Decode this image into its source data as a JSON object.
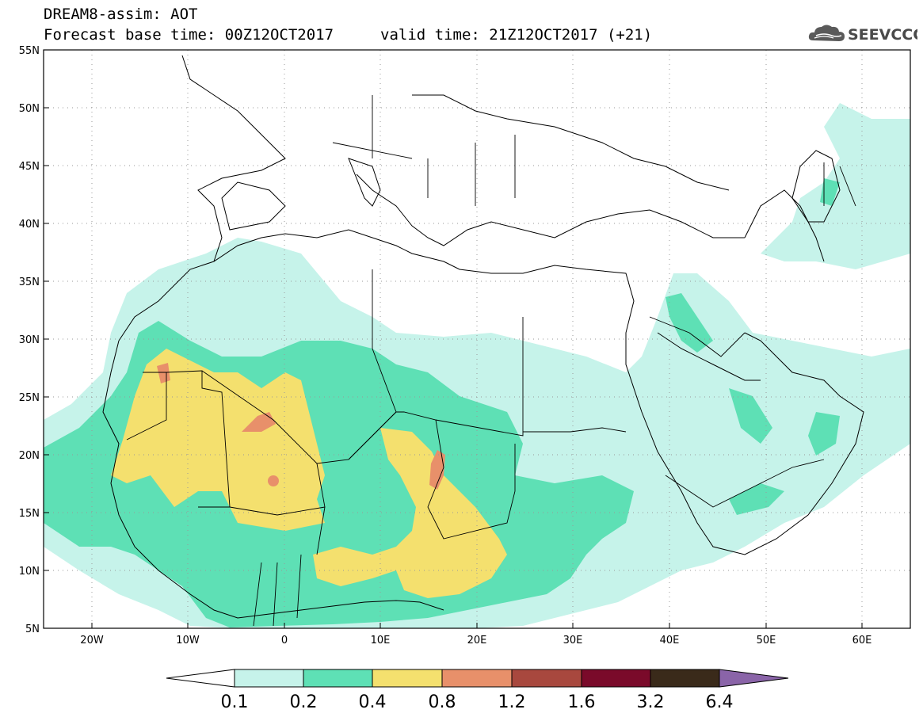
{
  "header": {
    "title": "DREAM8-assim: AOT",
    "base_time": "Forecast base time: 00Z12OCT2017",
    "valid_time": "valid time: 21Z12OCT2017 (+21)",
    "logo_text": "SEEVCCC"
  },
  "map": {
    "lat_labels": [
      "55N",
      "50N",
      "45N",
      "40N",
      "35N",
      "30N",
      "25N",
      "20N",
      "15N",
      "10N",
      "5N"
    ],
    "lon_labels": [
      "20W",
      "10W",
      "0",
      "10E",
      "20E",
      "30E",
      "40E",
      "50E",
      "60E"
    ]
  },
  "colorbar": {
    "labels": [
      "0.1",
      "0.2",
      "0.4",
      "0.8",
      "1.2",
      "1.6",
      "3.2",
      "6.4"
    ],
    "colors": [
      "#ffffff",
      "#c6f3ea",
      "#5ee0b5",
      "#f4e06e",
      "#e8906a",
      "#a8483e",
      "#7a0a2a",
      "#3a2a1a",
      "#8a64a8"
    ]
  },
  "legend_classes": {
    "low": "#c6f3ea",
    "mid": "#5ee0b5",
    "high": "#f4e06e",
    "vhigh": "#e8906a",
    "ext": "#a8483e"
  }
}
